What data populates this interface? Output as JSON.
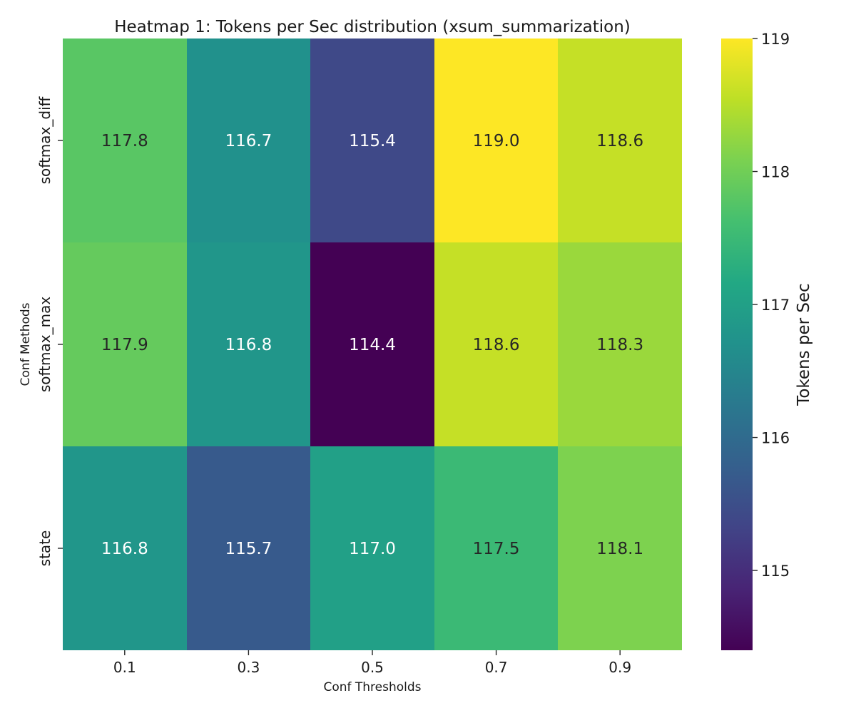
{
  "chart_data": {
    "type": "heatmap",
    "title": "Heatmap 1: Tokens per Sec distribution (xsum_summarization)",
    "xlabel": "Conf Thresholds",
    "ylabel": "Conf Methods",
    "x_categories": [
      "0.1",
      "0.3",
      "0.5",
      "0.7",
      "0.9"
    ],
    "y_categories": [
      "softmax_diff",
      "softmax_max",
      "state"
    ],
    "values": [
      [
        117.8,
        116.7,
        115.4,
        119.0,
        118.6
      ],
      [
        117.9,
        116.8,
        114.4,
        118.6,
        118.3
      ],
      [
        116.8,
        115.7,
        117.0,
        117.5,
        118.1
      ]
    ],
    "value_labels": [
      [
        "117.8",
        "116.7",
        "115.4",
        "119.0",
        "118.6"
      ],
      [
        "117.9",
        "116.8",
        "114.4",
        "118.6",
        "118.3"
      ],
      [
        "116.8",
        "115.7",
        "117.0",
        "117.5",
        "118.1"
      ]
    ],
    "colormap": "viridis",
    "colorbar": {
      "label": "Tokens per Sec",
      "range": [
        114.4,
        119.0
      ],
      "ticks": [
        115,
        116,
        117,
        118,
        119
      ],
      "tick_labels": [
        "115",
        "116",
        "117",
        "118",
        "119"
      ]
    },
    "grid": false
  }
}
